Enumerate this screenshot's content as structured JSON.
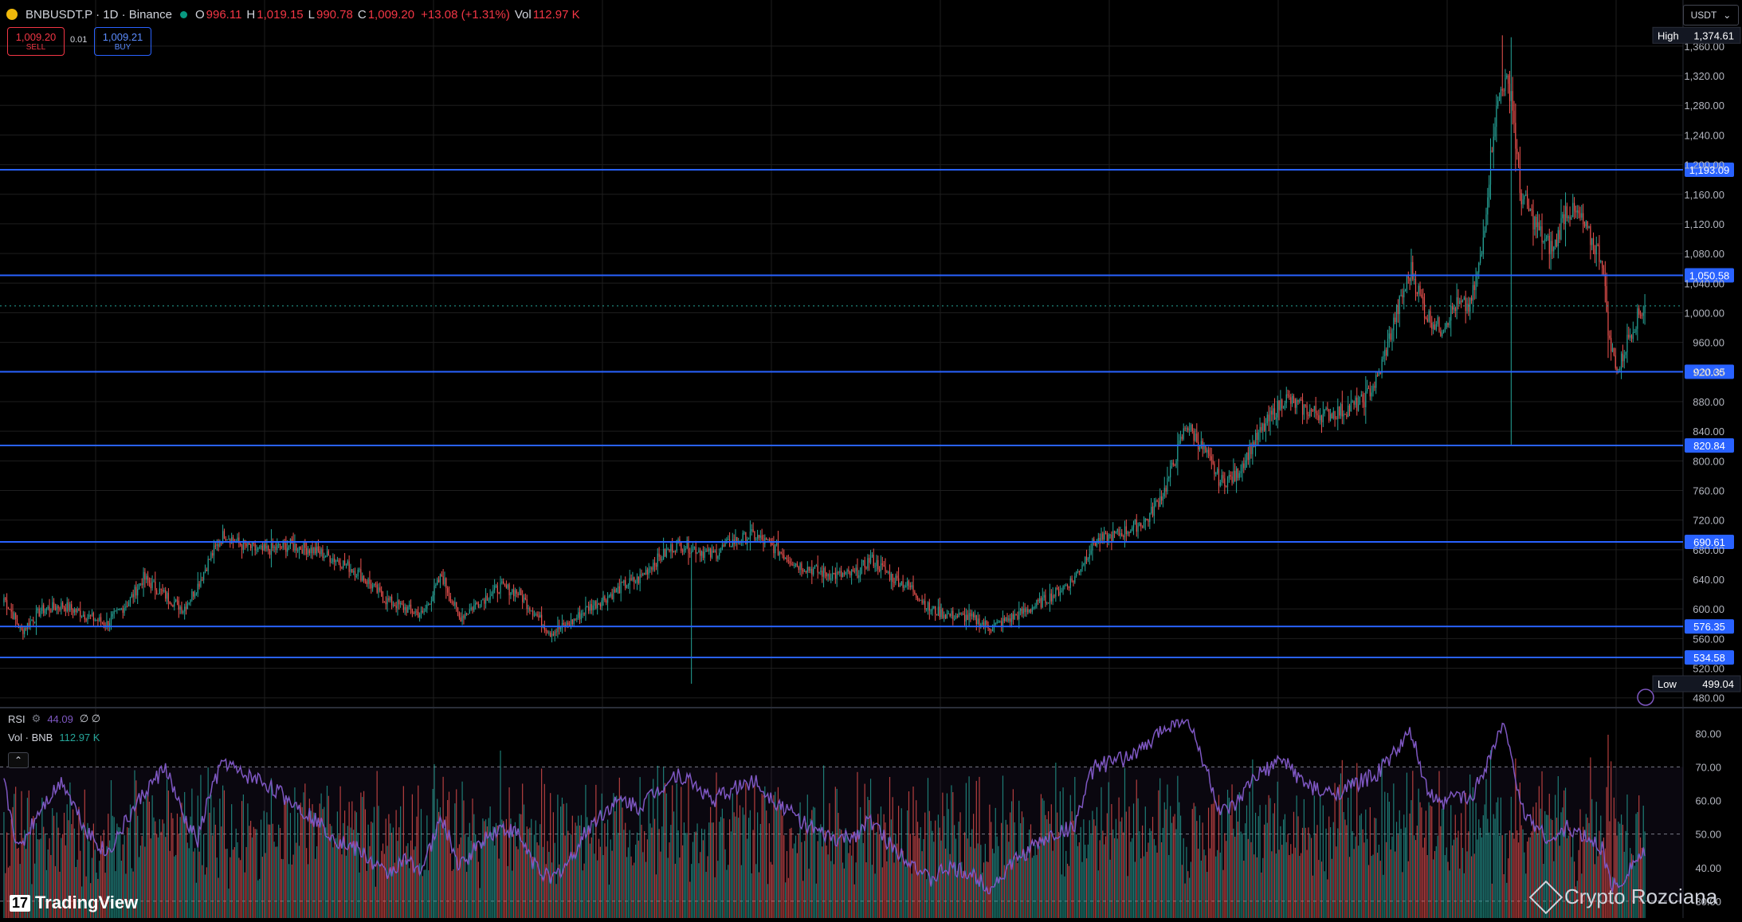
{
  "header": {
    "symbol": "BNBUSDT.P · 1D · Binance",
    "ohlc": [
      {
        "k": "O",
        "v": "996.11"
      },
      {
        "k": "H",
        "v": "1,019.15"
      },
      {
        "k": "L",
        "v": "990.78"
      },
      {
        "k": "C",
        "v": "1,009.20"
      },
      {
        "k": "",
        "v": "+13.08 (+1.31%)"
      },
      {
        "k": "Vol",
        "v": "112.97 K"
      }
    ]
  },
  "trade": {
    "sell_price": "1,009.20",
    "sell_label": "SELL",
    "buy_price": "1,009.21",
    "buy_label": "BUY",
    "spread": "0.01"
  },
  "currency": "USDT",
  "indicators": {
    "rsi_name": "RSI",
    "rsi_value": "44.09",
    "rsi_extra": "∅ ∅",
    "vol_name": "Vol · BNB",
    "vol_value": "112.97 K"
  },
  "branding": {
    "tradingview": "TradingView",
    "watermark": "Crypto Rozciana"
  },
  "colors": {
    "up": "#26a69a",
    "down": "#ef5350",
    "level": "#2962ff",
    "rsi": "#7e57c2",
    "bg": "#000000",
    "grid": "#1e1e1e"
  },
  "chart_data": {
    "type": "candlestick",
    "symbol": "BNBUSDT.P",
    "interval": "1D",
    "ylim": [
      470,
      1390
    ],
    "price_ticks": [
      480,
      520,
      560,
      600,
      640,
      680,
      720,
      760,
      800,
      840,
      880,
      920,
      960,
      1000,
      1040,
      1080,
      1120,
      1160,
      1200,
      1240,
      1280,
      1320,
      1360
    ],
    "high": {
      "label": "High",
      "value": "1,374.61"
    },
    "low": {
      "label": "Low",
      "value": "499.04"
    },
    "current_price": 1009.2,
    "levels": [
      1193.09,
      1050.58,
      920.35,
      820.84,
      690.61,
      576.35,
      534.58
    ],
    "level_labels": [
      "1,193.09",
      "1,050.58",
      "920.35",
      "820.84",
      "690.61",
      "576.35",
      "534.58"
    ],
    "close_anchors": [
      [
        0,
        615
      ],
      [
        12,
        570
      ],
      [
        25,
        598
      ],
      [
        40,
        605
      ],
      [
        55,
        592
      ],
      [
        70,
        580
      ],
      [
        85,
        610
      ],
      [
        95,
        642
      ],
      [
        110,
        618
      ],
      [
        122,
        600
      ],
      [
        132,
        632
      ],
      [
        140,
        668
      ],
      [
        150,
        702
      ],
      [
        160,
        688
      ],
      [
        175,
        678
      ],
      [
        195,
        686
      ],
      [
        210,
        680
      ],
      [
        228,
        665
      ],
      [
        242,
        648
      ],
      [
        260,
        612
      ],
      [
        272,
        602
      ],
      [
        285,
        592
      ],
      [
        298,
        645
      ],
      [
        310,
        588
      ],
      [
        325,
        612
      ],
      [
        338,
        630
      ],
      [
        350,
        622
      ],
      [
        360,
        598
      ],
      [
        372,
        568
      ],
      [
        385,
        580
      ],
      [
        398,
        602
      ],
      [
        412,
        618
      ],
      [
        422,
        632
      ],
      [
        432,
        640
      ],
      [
        442,
        662
      ],
      [
        458,
        688
      ],
      [
        470,
        682
      ],
      [
        482,
        672
      ],
      [
        495,
        690
      ],
      [
        510,
        700
      ],
      [
        525,
        682
      ],
      [
        540,
        660
      ],
      [
        555,
        650
      ],
      [
        568,
        645
      ],
      [
        580,
        648
      ],
      [
        590,
        668
      ],
      [
        605,
        642
      ],
      [
        618,
        628
      ],
      [
        630,
        600
      ],
      [
        642,
        592
      ],
      [
        658,
        588
      ],
      [
        672,
        575
      ],
      [
        688,
        590
      ],
      [
        700,
        602
      ],
      [
        715,
        620
      ],
      [
        728,
        640
      ],
      [
        742,
        690
      ],
      [
        760,
        702
      ],
      [
        778,
        720
      ],
      [
        790,
        760
      ],
      [
        805,
        850
      ],
      [
        818,
        810
      ],
      [
        828,
        772
      ],
      [
        838,
        778
      ],
      [
        850,
        822
      ],
      [
        862,
        858
      ],
      [
        872,
        885
      ],
      [
        885,
        870
      ],
      [
        898,
        862
      ],
      [
        912,
        868
      ],
      [
        925,
        880
      ],
      [
        935,
        910
      ],
      [
        948,
        1000
      ],
      [
        958,
        1058
      ],
      [
        968,
        998
      ],
      [
        978,
        978
      ],
      [
        988,
        1010
      ],
      [
        998,
        1008
      ],
      [
        1006,
        1080
      ],
      [
        1014,
        1250
      ],
      [
        1020,
        1312
      ],
      [
        1026,
        1300
      ],
      [
        1032,
        1162
      ],
      [
        1040,
        1130
      ],
      [
        1048,
        1098
      ],
      [
        1055,
        1085
      ],
      [
        1063,
        1140
      ],
      [
        1072,
        1130
      ],
      [
        1080,
        1100
      ],
      [
        1088,
        1072
      ],
      [
        1093,
        958
      ],
      [
        1099,
        922
      ],
      [
        1106,
        968
      ],
      [
        1112,
        994
      ],
      [
        1117,
        1009.2
      ]
    ],
    "rsi": {
      "ticks": [
        30,
        40,
        50,
        60,
        70,
        80
      ],
      "overbought": 70,
      "oversold": 30,
      "ylim": [
        25,
        86
      ],
      "anchors": [
        [
          0,
          65
        ],
        [
          10,
          45
        ],
        [
          25,
          58
        ],
        [
          40,
          66
        ],
        [
          55,
          52
        ],
        [
          70,
          44
        ],
        [
          85,
          55
        ],
        [
          95,
          62
        ],
        [
          110,
          70
        ],
        [
          122,
          55
        ],
        [
          132,
          48
        ],
        [
          140,
          62
        ],
        [
          150,
          72
        ],
        [
          160,
          68
        ],
        [
          175,
          66
        ],
        [
          195,
          60
        ],
        [
          210,
          55
        ],
        [
          228,
          48
        ],
        [
          242,
          45
        ],
        [
          260,
          38
        ],
        [
          272,
          42
        ],
        [
          285,
          40
        ],
        [
          298,
          55
        ],
        [
          310,
          40
        ],
        [
          325,
          48
        ],
        [
          338,
          52
        ],
        [
          350,
          50
        ],
        [
          360,
          42
        ],
        [
          372,
          36
        ],
        [
          385,
          42
        ],
        [
          398,
          52
        ],
        [
          412,
          58
        ],
        [
          422,
          60
        ],
        [
          432,
          58
        ],
        [
          442,
          62
        ],
        [
          458,
          68
        ],
        [
          470,
          65
        ],
        [
          482,
          60
        ],
        [
          495,
          63
        ],
        [
          510,
          66
        ],
        [
          525,
          60
        ],
        [
          540,
          55
        ],
        [
          555,
          50
        ],
        [
          568,
          48
        ],
        [
          580,
          50
        ],
        [
          590,
          54
        ],
        [
          605,
          46
        ],
        [
          618,
          42
        ],
        [
          630,
          36
        ],
        [
          642,
          40
        ],
        [
          658,
          38
        ],
        [
          672,
          34
        ],
        [
          688,
          42
        ],
        [
          700,
          46
        ],
        [
          715,
          50
        ],
        [
          728,
          52
        ],
        [
          742,
          70
        ],
        [
          760,
          72
        ],
        [
          778,
          76
        ],
        [
          790,
          82
        ],
        [
          805,
          85
        ],
        [
          818,
          70
        ],
        [
          828,
          56
        ],
        [
          838,
          58
        ],
        [
          850,
          66
        ],
        [
          862,
          70
        ],
        [
          872,
          72
        ],
        [
          885,
          65
        ],
        [
          898,
          62
        ],
        [
          912,
          63
        ],
        [
          925,
          66
        ],
        [
          935,
          68
        ],
        [
          948,
          75
        ],
        [
          958,
          80
        ],
        [
          968,
          64
        ],
        [
          978,
          58
        ],
        [
          988,
          62
        ],
        [
          998,
          60
        ],
        [
          1006,
          68
        ],
        [
          1014,
          76
        ],
        [
          1020,
          82
        ],
        [
          1026,
          76
        ],
        [
          1032,
          58
        ],
        [
          1040,
          54
        ],
        [
          1048,
          50
        ],
        [
          1055,
          48
        ],
        [
          1063,
          52
        ],
        [
          1072,
          50
        ],
        [
          1080,
          48
        ],
        [
          1088,
          46
        ],
        [
          1093,
          36
        ],
        [
          1099,
          34
        ],
        [
          1106,
          40
        ],
        [
          1112,
          43
        ],
        [
          1117,
          44.09
        ]
      ]
    },
    "volume": {
      "value_label": "112.97 K"
    }
  }
}
